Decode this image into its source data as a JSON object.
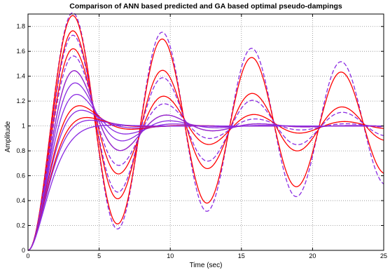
{
  "chart_data": {
    "type": "line",
    "title": "Comparison of ANN based predicted and GA based optimal pseudo-dampings",
    "xlabel": "Time (sec)",
    "ylabel": "Amplitude",
    "xlim": [
      0,
      25
    ],
    "ylim": [
      0,
      1.9
    ],
    "xticks": [
      0,
      5,
      10,
      15,
      20,
      25
    ],
    "yticks": [
      0,
      0.2,
      0.4,
      0.6,
      0.8,
      1,
      1.2,
      1.4,
      1.6,
      1.8
    ],
    "xtick_labels": [
      "0",
      "5",
      "10",
      "15",
      "20",
      "25"
    ],
    "ytick_labels": [
      "0",
      "0.2",
      "0.4",
      "0.6",
      "0.8",
      "1",
      "1.2",
      "1.4",
      "1.6",
      "1.8"
    ],
    "grid": true,
    "legend": "none",
    "model": "step response of second-order system, wn = 1.0 rad/s",
    "series": [
      {
        "zeta": 0.03,
        "color": "#8a2be2",
        "dash": true
      },
      {
        "zeta": 0.038,
        "color": "#ff0000",
        "dash": false
      },
      {
        "zeta": 0.085,
        "color": "#ff0000",
        "dash": false
      },
      {
        "zeta": 0.1,
        "color": "#8a2be2",
        "dash": true
      },
      {
        "zeta": 0.15,
        "color": "#ff0000",
        "dash": false
      },
      {
        "zeta": 0.18,
        "color": "#8a2be2",
        "dash": true
      },
      {
        "zeta": 0.25,
        "color": "#ff0000",
        "dash": false
      },
      {
        "zeta": 0.25,
        "color": "#8a2be2",
        "dash": false
      },
      {
        "zeta": 0.32,
        "color": "#8a2be2",
        "dash": false
      },
      {
        "zeta": 0.4,
        "color": "#8a2be2",
        "dash": false
      },
      {
        "zeta": 0.5,
        "color": "#ff0000",
        "dash": false
      },
      {
        "zeta": 0.55,
        "color": "#8a2be2",
        "dash": false
      },
      {
        "zeta": 0.65,
        "color": "#ff0000",
        "dash": false
      },
      {
        "zeta": 0.7,
        "color": "#8a2be2",
        "dash": false
      },
      {
        "zeta": 0.85,
        "color": "#8a2be2",
        "dash": false
      }
    ]
  }
}
